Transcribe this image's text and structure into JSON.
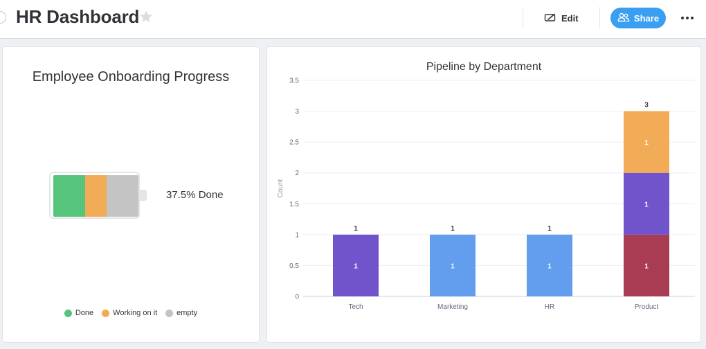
{
  "header": {
    "title": "HR Dashboard",
    "edit_label": "Edit",
    "share_label": "Share",
    "icons": {
      "star": "star-icon",
      "edit": "pencil-icon",
      "share": "people-icon",
      "more": "more-horizontal-icon"
    }
  },
  "colors": {
    "done": "#57c47b",
    "working": "#f2ac57",
    "empty": "#c4c4c4",
    "purple": "#7153cc",
    "blue": "#629dee",
    "maroon": "#a83c53",
    "share_button": "#3a9ff2"
  },
  "battery_widget": {
    "title": "Employee Onboarding Progress",
    "progress_text": "37.5% Done",
    "segments": [
      {
        "status": "Done",
        "fraction": 0.375,
        "color": "#57c47b"
      },
      {
        "status": "Working on it",
        "fraction": 0.25,
        "color": "#f2ac57"
      },
      {
        "status": "empty",
        "fraction": 0.375,
        "color": "#c4c4c4"
      }
    ],
    "legend": [
      {
        "label": "Done",
        "color": "#57c47b"
      },
      {
        "label": "Working on it",
        "color": "#f2ac57"
      },
      {
        "label": "empty",
        "color": "#c4c4c4"
      }
    ]
  },
  "chart_data": {
    "type": "bar",
    "stacked": true,
    "title": "Pipeline by Department",
    "ylabel": "Count",
    "xlabel": "",
    "ylim": [
      0,
      3.5
    ],
    "yticks": [
      0,
      0.5,
      1,
      1.5,
      2,
      2.5,
      3,
      3.5
    ],
    "ytick_labels": [
      "0",
      "0.5",
      "1",
      "1.5",
      "2",
      "2.5",
      "3",
      "3.5"
    ],
    "grid": true,
    "categories": [
      "Tech",
      "Marketing",
      "HR",
      "Product"
    ],
    "totals": [
      1,
      1,
      1,
      3
    ],
    "stacks": [
      [
        {
          "value": 1,
          "color": "#7153cc"
        }
      ],
      [
        {
          "value": 1,
          "color": "#629dee"
        }
      ],
      [
        {
          "value": 1,
          "color": "#629dee"
        }
      ],
      [
        {
          "value": 1,
          "color": "#a83c53"
        },
        {
          "value": 1,
          "color": "#7153cc"
        },
        {
          "value": 1,
          "color": "#f2ac57"
        }
      ]
    ]
  }
}
